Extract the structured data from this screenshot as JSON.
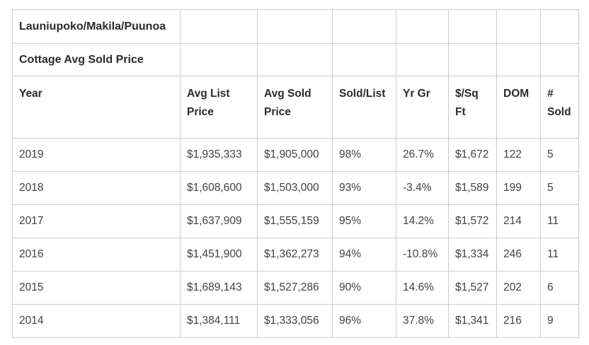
{
  "table": {
    "title": "Launiupoko/Makila/Puunoa",
    "subtitle": "Cottage Avg Sold Price",
    "columns": [
      "Year",
      "Avg List Price",
      "Avg Sold Price",
      "Sold/List",
      "Yr Gr",
      "$/Sq Ft",
      "DOM",
      "# Sold"
    ],
    "rows": [
      [
        "2019",
        "$1,935,333",
        "$1,905,000",
        "98%",
        "26.7%",
        "$1,672",
        "122",
        "5"
      ],
      [
        "2018",
        "$1,608,600",
        "$1,503,000",
        "93%",
        "-3.4%",
        "$1,589",
        "199",
        "5"
      ],
      [
        "2017",
        "$1,637,909",
        "$1,555,159",
        "95%",
        "14.2%",
        "$1,572",
        "214",
        "11"
      ],
      [
        "2016",
        "$1,451,900",
        "$1,362,273",
        "94%",
        "-10.8%",
        "$1,334",
        "246",
        "11"
      ],
      [
        "2015",
        "$1,689,143",
        "$1,527,286",
        "90%",
        "14.6%",
        "$1,527",
        "202",
        "6"
      ],
      [
        "2014",
        "$1,384,111",
        "$1,333,056",
        "96%",
        "37.8%",
        "$1,341",
        "216",
        "9"
      ]
    ]
  },
  "chart_data": {
    "type": "table",
    "title": "Launiupoko/Makila/Puunoa",
    "subtitle": "Cottage Avg Sold Price",
    "columns": [
      "Year",
      "Avg List Price",
      "Avg Sold Price",
      "Sold/List",
      "Yr Gr",
      "$/Sq Ft",
      "DOM",
      "# Sold"
    ],
    "rows": [
      [
        2019,
        1935333,
        1905000,
        "98%",
        "26.7%",
        1672,
        122,
        5
      ],
      [
        2018,
        1608600,
        1503000,
        "93%",
        "-3.4%",
        1589,
        199,
        5
      ],
      [
        2017,
        1637909,
        1555159,
        "95%",
        "14.2%",
        1572,
        214,
        11
      ],
      [
        2016,
        1451900,
        1362273,
        "94%",
        "-10.8%",
        1334,
        246,
        11
      ],
      [
        2015,
        1689143,
        1527286,
        "90%",
        "14.6%",
        1527,
        202,
        6
      ],
      [
        2014,
        1384111,
        1333056,
        "96%",
        "37.8%",
        1341,
        216,
        9
      ]
    ],
    "colors": {
      "border": "#cccccc",
      "header_text": "#2b2b2b",
      "body_text": "#404040",
      "background": "#ffffff"
    }
  }
}
